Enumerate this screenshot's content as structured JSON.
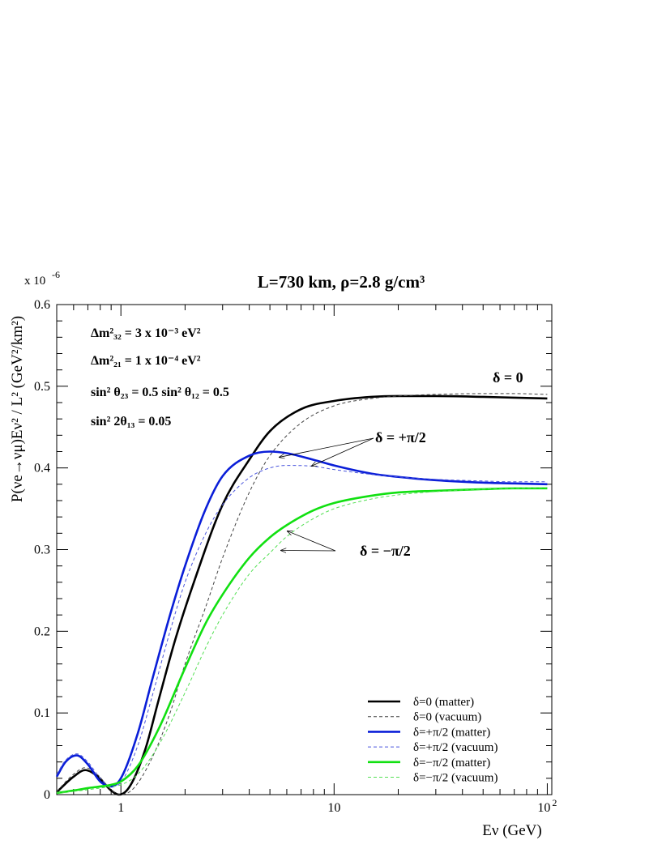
{
  "chart_data": {
    "type": "line",
    "title": "L=730 km, ρ=2.8 g/cm³",
    "ylabel": "P(νe→νμ)Eν² / L² (GeV²/km²)",
    "xlabel": "Eν (GeV)",
    "y_multiplier": "x 10",
    "y_multiplier_exp": "-6",
    "xscale": "log",
    "xlim": [
      0.5,
      105
    ],
    "ylim": [
      0,
      0.6
    ],
    "x_ticks": [
      {
        "value": 1,
        "label": "1",
        "exp": ""
      },
      {
        "value": 10,
        "label": "10",
        "exp": ""
      },
      {
        "value": 100,
        "label": "10",
        "exp": "2"
      }
    ],
    "y_ticks": [
      {
        "value": 0,
        "label": "0"
      },
      {
        "value": 0.1,
        "label": "0.1"
      },
      {
        "value": 0.2,
        "label": "0.2"
      },
      {
        "value": 0.3,
        "label": "0.3"
      },
      {
        "value": 0.4,
        "label": "0.4"
      },
      {
        "value": 0.5,
        "label": "0.5"
      },
      {
        "value": 0.6,
        "label": "0.6"
      }
    ],
    "grid": false,
    "legend_position": "bottom-right",
    "parameters": [
      "Δm²₃₂ = 3 x 10⁻³ eV²",
      "Δm²₂₁ = 1 x 10⁻⁴ eV²",
      "sin² θ₂₃ = 0.5    sin² θ₁₂ = 0.5",
      "sin² 2θ₁₃ = 0.05"
    ],
    "annotations": [
      {
        "text": "δ = 0",
        "arrows_to": []
      },
      {
        "text": "δ = +π/2",
        "arrows_to": [
          [
            5.5,
            0.413
          ],
          [
            7.8,
            0.402
          ]
        ]
      },
      {
        "text": "δ = −π/2",
        "arrows_to": [
          [
            6.0,
            0.323
          ],
          [
            5.6,
            0.299
          ]
        ]
      }
    ],
    "series": [
      {
        "name": "δ=0 (matter)",
        "color": "#000000",
        "style": "solid",
        "x": [
          0.5,
          0.6,
          0.68,
          0.78,
          0.9,
          0.98,
          1.1,
          1.3,
          1.5,
          1.8,
          2.2,
          3,
          4,
          5,
          7,
          10,
          15,
          20,
          30,
          50,
          70,
          100
        ],
        "y": [
          0.003,
          0.022,
          0.03,
          0.022,
          0.005,
          0.0,
          0.01,
          0.055,
          0.115,
          0.19,
          0.26,
          0.355,
          0.41,
          0.445,
          0.472,
          0.482,
          0.487,
          0.488,
          0.488,
          0.487,
          0.486,
          0.485
        ]
      },
      {
        "name": "δ=0 (vacuum)",
        "color": "#444444",
        "style": "dashed",
        "x": [
          0.5,
          0.6,
          0.68,
          0.78,
          0.9,
          1.0,
          1.15,
          1.4,
          1.7,
          2.0,
          2.5,
          3,
          4,
          5,
          7,
          10,
          15,
          20,
          30,
          50,
          70,
          100
        ],
        "y": [
          0.004,
          0.025,
          0.033,
          0.024,
          0.006,
          0.0,
          0.008,
          0.045,
          0.1,
          0.16,
          0.23,
          0.29,
          0.37,
          0.415,
          0.455,
          0.476,
          0.485,
          0.488,
          0.49,
          0.491,
          0.491,
          0.49
        ]
      },
      {
        "name": "δ=+π/2 (matter)",
        "color": "#0a1ed8",
        "style": "solid",
        "x": [
          0.5,
          0.55,
          0.62,
          0.7,
          0.8,
          0.9,
          1.0,
          1.2,
          1.4,
          1.7,
          2.0,
          2.5,
          3,
          4,
          5,
          6,
          8,
          10,
          15,
          20,
          30,
          50,
          70,
          100
        ],
        "y": [
          0.022,
          0.04,
          0.048,
          0.037,
          0.016,
          0.01,
          0.02,
          0.075,
          0.14,
          0.22,
          0.28,
          0.35,
          0.39,
          0.415,
          0.42,
          0.418,
          0.41,
          0.403,
          0.393,
          0.389,
          0.385,
          0.382,
          0.381,
          0.38
        ]
      },
      {
        "name": "δ=+π/2 (vacuum)",
        "color": "#4a55dd",
        "style": "dashed",
        "x": [
          0.5,
          0.55,
          0.62,
          0.7,
          0.8,
          0.9,
          1.0,
          1.2,
          1.4,
          1.7,
          2.0,
          2.5,
          3,
          4,
          5,
          6,
          8,
          10,
          15,
          20,
          30,
          50,
          70,
          100
        ],
        "y": [
          0.025,
          0.042,
          0.05,
          0.04,
          0.02,
          0.01,
          0.015,
          0.06,
          0.12,
          0.2,
          0.26,
          0.32,
          0.355,
          0.388,
          0.4,
          0.403,
          0.402,
          0.398,
          0.392,
          0.389,
          0.386,
          0.384,
          0.383,
          0.383
        ]
      },
      {
        "name": "δ=−π/2 (matter)",
        "color": "#11e011",
        "style": "solid",
        "x": [
          0.5,
          0.6,
          0.7,
          0.8,
          0.9,
          1.0,
          1.2,
          1.5,
          2.0,
          2.5,
          3,
          4,
          5,
          6,
          8,
          10,
          15,
          20,
          30,
          50,
          70,
          100
        ],
        "y": [
          0.002,
          0.005,
          0.008,
          0.01,
          0.012,
          0.016,
          0.035,
          0.08,
          0.155,
          0.21,
          0.245,
          0.29,
          0.315,
          0.33,
          0.348,
          0.357,
          0.366,
          0.37,
          0.372,
          0.374,
          0.375,
          0.375
        ]
      },
      {
        "name": "δ=−π/2 (vacuum)",
        "color": "#55e055",
        "style": "dashed",
        "x": [
          0.5,
          0.6,
          0.7,
          0.8,
          0.9,
          1.0,
          1.2,
          1.5,
          2.0,
          2.5,
          3,
          4,
          5,
          6,
          8,
          10,
          15,
          20,
          30,
          50,
          70,
          100
        ],
        "y": [
          0.002,
          0.004,
          0.006,
          0.008,
          0.01,
          0.012,
          0.025,
          0.06,
          0.125,
          0.18,
          0.22,
          0.27,
          0.296,
          0.316,
          0.338,
          0.35,
          0.362,
          0.367,
          0.371,
          0.374,
          0.375,
          0.376
        ]
      }
    ]
  }
}
